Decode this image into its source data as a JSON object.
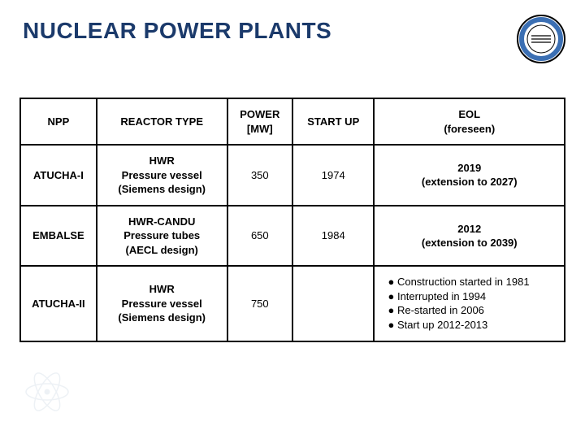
{
  "title": {
    "text": "NUCLEAR POWER PLANTS",
    "color": "#1b3a6b",
    "fontsize": 28
  },
  "logo": {
    "label": "CNEA",
    "ring_outer": "#000000",
    "ring_inner": "#3b6fb3",
    "center_bg": "#ffffff"
  },
  "table": {
    "border_color": "#000000",
    "header_bg": "#ffffff",
    "cell_bg": "#ffffff",
    "font_size": 13,
    "columns": [
      {
        "key": "npp",
        "label": "NPP",
        "width_pct": 14
      },
      {
        "key": "reactor",
        "label": "REACTOR TYPE",
        "width_pct": 24
      },
      {
        "key": "power",
        "label": "POWER\n[MW]",
        "width_pct": 12
      },
      {
        "key": "startup",
        "label": "START UP",
        "width_pct": 15
      },
      {
        "key": "eol",
        "label": "EOL\n(foreseen)",
        "width_pct": 35
      }
    ],
    "rows": [
      {
        "npp": "ATUCHA-I",
        "reactor": "HWR\nPressure vessel\n(Siemens design)",
        "power": "350",
        "startup": "1974",
        "eol": "2019\n(extension to 2027)"
      },
      {
        "npp": "EMBALSE",
        "reactor": "HWR-CANDU\nPressure tubes\n(AECL design)",
        "power": "650",
        "startup": "1984",
        "eol": "2012\n(extension to 2039)"
      },
      {
        "npp": "ATUCHA-II",
        "reactor": "HWR\nPressure vessel\n(Siemens design)",
        "power": "750",
        "startup": "",
        "eol_bullets": [
          "Construction started in 1981",
          "Interrupted in 1994",
          "Re-started in 2006",
          "Start up 2012-2013"
        ]
      }
    ]
  },
  "decoration": {
    "atom_color": "#5a7fa8"
  }
}
